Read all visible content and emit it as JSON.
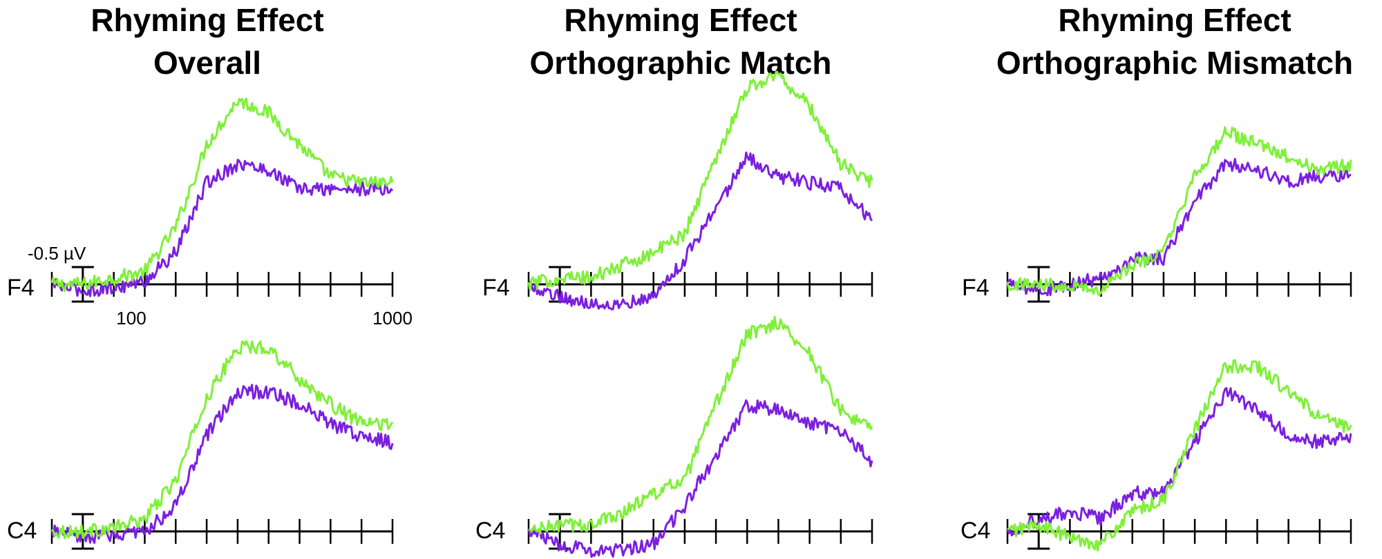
{
  "panels": [
    {
      "title_line1": "Rhyming Effect",
      "title_line2": "Overall"
    },
    {
      "title_line1": "Rhyming Effect",
      "title_line2": "Orthographic Match"
    },
    {
      "title_line1": "Rhyming Effect",
      "title_line2": "Orthographic Mismatch"
    }
  ],
  "rows": [
    "F4",
    "C4"
  ],
  "scale": {
    "amplitude_label": "-0.5 µV",
    "tick_label_start": "100",
    "tick_label_end": "1000"
  },
  "colors": {
    "series_a": "#7b1fe0",
    "series_b": "#7ff038",
    "axis": "#000000"
  },
  "chart_data": {
    "type": "line",
    "xlabel": "",
    "ylabel": "",
    "x_unit": "ms",
    "xlim": [
      -100,
      1000
    ],
    "tick_step": 100,
    "ylim": [
      -0.5,
      3.0
    ],
    "scale_bar_uV": 0.5,
    "negative_up": true,
    "x": [
      -100,
      0,
      100,
      200,
      300,
      400,
      500,
      600,
      700,
      800,
      900,
      1000
    ],
    "grid": false,
    "legend": "none",
    "subplots": [
      {
        "panel": 0,
        "electrode": "F4",
        "series": [
          {
            "values": [
              0.0,
              0.0,
              0.1,
              0.2,
              0.9,
              2.2,
              2.9,
              2.7,
              2.2,
              1.7,
              1.6,
              1.6
            ]
          },
          {
            "values": [
              0.0,
              -0.1,
              -0.05,
              0.05,
              0.5,
              1.6,
              1.9,
              1.8,
              1.5,
              1.5,
              1.5,
              1.5
            ]
          }
        ]
      },
      {
        "panel": 0,
        "electrode": "C4",
        "series": [
          {
            "values": [
              0.0,
              0.0,
              0.05,
              0.2,
              0.8,
              2.1,
              2.9,
              2.9,
              2.4,
              2.0,
              1.7,
              1.7
            ]
          },
          {
            "values": [
              0.0,
              -0.1,
              -0.05,
              0.0,
              0.4,
              1.5,
              2.2,
              2.2,
              2.0,
              1.7,
              1.5,
              1.4
            ]
          }
        ]
      },
      {
        "panel": 1,
        "electrode": "F4",
        "series": [
          {
            "values": [
              0.0,
              0.1,
              0.1,
              0.3,
              0.5,
              0.8,
              2.0,
              3.1,
              3.3,
              2.8,
              1.9,
              1.6
            ]
          },
          {
            "values": [
              0.0,
              -0.2,
              -0.3,
              -0.3,
              -0.2,
              0.4,
              1.2,
              2.0,
              1.7,
              1.6,
              1.5,
              1.0
            ]
          }
        ]
      },
      {
        "panel": 1,
        "electrode": "C4",
        "series": [
          {
            "values": [
              0.0,
              0.1,
              0.1,
              0.3,
              0.6,
              0.8,
              2.0,
              3.1,
              3.3,
              2.8,
              1.9,
              1.6
            ]
          },
          {
            "values": [
              0.0,
              -0.2,
              -0.3,
              -0.3,
              -0.2,
              0.4,
              1.2,
              2.0,
              1.9,
              1.7,
              1.6,
              1.1
            ]
          }
        ]
      },
      {
        "panel": 2,
        "electrode": "F4",
        "series": [
          {
            "values": [
              0.0,
              0.0,
              0.0,
              -0.1,
              0.3,
              0.5,
              1.7,
              2.4,
              2.2,
              2.0,
              1.8,
              1.9
            ]
          },
          {
            "values": [
              0.0,
              -0.1,
              0.0,
              0.1,
              0.4,
              0.4,
              1.3,
              1.9,
              1.8,
              1.6,
              1.7,
              1.7
            ]
          }
        ]
      },
      {
        "panel": 2,
        "electrode": "C4",
        "series": [
          {
            "values": [
              0.0,
              0.1,
              -0.1,
              -0.2,
              0.3,
              0.5,
              1.6,
              2.6,
              2.6,
              2.2,
              1.8,
              1.6
            ]
          },
          {
            "values": [
              0.0,
              0.2,
              0.3,
              0.2,
              0.6,
              0.6,
              1.4,
              2.2,
              1.9,
              1.5,
              1.4,
              1.5
            ]
          }
        ]
      }
    ]
  }
}
